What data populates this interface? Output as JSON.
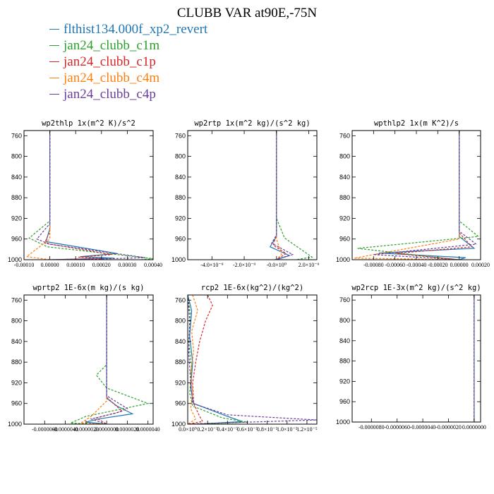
{
  "title": "CLUBB VAR at90E,-75N",
  "legend": [
    {
      "name": "flthist134.000f_xp2_revert",
      "color": "#1f77b4"
    },
    {
      "name": "jan24_clubb_c1m",
      "color": "#2ca02c"
    },
    {
      "name": "jan24_clubb_c1p",
      "color": "#d62728"
    },
    {
      "name": "jan24_clubb_c4m",
      "color": "#ff7f0e"
    },
    {
      "name": "jan24_clubb_c4p",
      "color": "#6a3d9a"
    }
  ],
  "chart_data": [
    {
      "type": "line",
      "title": "wp2thlp   1x(m^2 K)/s^2",
      "xlim": [
        -0.0001,
        0.0004
      ],
      "ylim": [
        1000,
        750
      ],
      "yticks": [
        760,
        800,
        840,
        880,
        920,
        960,
        1000
      ],
      "ytick_labels": [
        "760",
        "800",
        "840",
        "880",
        "920",
        "960",
        "1000"
      ],
      "xticks": [
        -0.0001,
        0.0,
        0.0001,
        0.0002,
        0.0003,
        0.0004
      ],
      "xtick_labels": [
        "-0.00010",
        "0.00000",
        "0.00010",
        "0.00020",
        "0.00030",
        "0.00040"
      ],
      "series": [
        {
          "name": "flthist134.000f_xp2_revert",
          "style": "solid",
          "points": [
            [
              0,
              750
            ],
            [
              0,
              940
            ],
            [
              -1.5e-05,
              965
            ],
            [
              0.00026,
              988
            ],
            [
              0.00012,
              994
            ],
            [
              0.00025,
              997
            ],
            [
              0,
              1000
            ]
          ]
        },
        {
          "name": "jan24_clubb_c1m",
          "style": "dash",
          "points": [
            [
              0,
              750
            ],
            [
              0,
              925
            ],
            [
              -8e-05,
              958
            ],
            [
              -1e-05,
              975
            ],
            [
              0.0004,
              998
            ],
            [
              0.00035,
              1000
            ]
          ]
        },
        {
          "name": "jan24_clubb_c1p",
          "style": "dash",
          "points": [
            [
              0,
              750
            ],
            [
              0,
              945
            ],
            [
              -2e-05,
              968
            ],
            [
              0.00024,
              990
            ],
            [
              0.00011,
              995
            ],
            [
              0.0002,
              998
            ],
            [
              0,
              1000
            ]
          ]
        },
        {
          "name": "jan24_clubb_c4m",
          "style": "dash",
          "points": [
            [
              0,
              750
            ],
            [
              0,
              960
            ],
            [
              -9e-05,
              994
            ],
            [
              0,
              1000
            ]
          ]
        },
        {
          "name": "jan24_clubb_c4p",
          "style": "dash",
          "points": [
            [
              0,
              750
            ],
            [
              0,
              930
            ],
            [
              -5e-05,
              960
            ],
            [
              0,
              970
            ],
            [
              0.00037,
              996
            ],
            [
              0.0001,
              1000
            ]
          ]
        }
      ]
    },
    {
      "type": "line",
      "title": "wp2rtp   1x(m^2 kg)/(s^2 kg)",
      "xlim": [
        -5.5e-09,
        2.5e-09
      ],
      "ylim": [
        1000,
        750
      ],
      "yticks": [
        760,
        800,
        840,
        880,
        920,
        960,
        1000
      ],
      "ytick_labels": [
        "760",
        "800",
        "840",
        "880",
        "920",
        "960",
        "1000"
      ],
      "xticks": [
        -4e-09,
        -2e-09,
        0,
        2e-09
      ],
      "xtick_labels": [
        "-4.0×10⁻⁹",
        "-2.0×10⁻⁹",
        "-0.0×10⁰",
        "2.0×10⁻⁹"
      ],
      "series": [
        {
          "name": "flthist134.000f_xp2_revert",
          "style": "solid",
          "points": [
            [
              0,
              750
            ],
            [
              0,
              955
            ],
            [
              -4e-10,
              975
            ],
            [
              8e-10,
              992
            ],
            [
              0,
              1000
            ]
          ]
        },
        {
          "name": "jan24_clubb_c1m",
          "style": "dash",
          "points": [
            [
              0,
              750
            ],
            [
              0,
              920
            ],
            [
              5e-10,
              958
            ],
            [
              2.2e-09,
              995
            ],
            [
              1.2e-09,
              1000
            ]
          ]
        },
        {
          "name": "jan24_clubb_c1p",
          "style": "dash",
          "points": [
            [
              0,
              750
            ],
            [
              0,
              950
            ],
            [
              -2e-10,
              972
            ],
            [
              6e-10,
              988
            ],
            [
              0,
              1000
            ]
          ]
        },
        {
          "name": "jan24_clubb_c4m",
          "style": "dash",
          "points": [
            [
              0,
              750
            ],
            [
              0,
              960
            ],
            [
              3e-10,
              990
            ],
            [
              0,
              1000
            ]
          ]
        },
        {
          "name": "jan24_clubb_c4p",
          "style": "dash",
          "points": [
            [
              0,
              750
            ],
            [
              0,
              952
            ],
            [
              -3e-10,
              968
            ],
            [
              1e-09,
              990
            ],
            [
              -1e-10,
              1000
            ]
          ]
        }
      ]
    },
    {
      "type": "line",
      "title": "wpthlp2   1x(m K^2)/s",
      "xlim": [
        -0.001,
        0.0002
      ],
      "ylim": [
        1000,
        750
      ],
      "yticks": [
        760,
        800,
        840,
        880,
        920,
        960,
        1000
      ],
      "ytick_labels": [
        "760",
        "800",
        "840",
        "880",
        "920",
        "960",
        "1000"
      ],
      "xticks": [
        -0.0008,
        -0.0006,
        -0.0004,
        -0.0002,
        0.0,
        0.0002
      ],
      "xtick_labels": [
        "-0.00080",
        "-0.00060",
        "-0.00040",
        "-0.00020",
        "0.00000",
        "0.00020"
      ],
      "series": [
        {
          "name": "flthist134.000f_xp2_revert",
          "style": "solid",
          "points": [
            [
              0,
              750
            ],
            [
              0,
              955
            ],
            [
              0.00014,
              978
            ],
            [
              -0.00075,
              987
            ],
            [
              6e-05,
              996
            ],
            [
              0,
              1000
            ]
          ]
        },
        {
          "name": "jan24_clubb_c1m",
          "style": "dash",
          "points": [
            [
              0,
              750
            ],
            [
              0,
              925
            ],
            [
              0.00018,
              955
            ],
            [
              -0.00095,
              978
            ],
            [
              -0.0001,
              998
            ],
            [
              0,
              1000
            ]
          ]
        },
        {
          "name": "jan24_clubb_c1p",
          "style": "dash",
          "points": [
            [
              0,
              750
            ],
            [
              0,
              948
            ],
            [
              0.00012,
              975
            ],
            [
              -0.0006,
              988
            ],
            [
              0,
              1000
            ]
          ]
        },
        {
          "name": "jan24_clubb_c4m",
          "style": "dash",
          "points": [
            [
              0,
              750
            ],
            [
              0,
              960
            ],
            [
              -0.00098,
              997
            ],
            [
              0,
              1000
            ]
          ]
        },
        {
          "name": "jan24_clubb_c4p",
          "style": "dash",
          "points": [
            [
              0,
              750
            ],
            [
              0,
              945
            ],
            [
              0.00016,
              970
            ],
            [
              -0.0008,
              990
            ],
            [
              0,
              1000
            ]
          ]
        }
      ]
    },
    {
      "type": "line",
      "title": "wprtp2   1E-6x(m kg)/(s kg)",
      "xlim": [
        -8e-06,
        4.5e-06
      ],
      "ylim": [
        1000,
        750
      ],
      "yticks": [
        760,
        800,
        840,
        880,
        920,
        960,
        1000
      ],
      "ytick_labels": [
        "760",
        "800",
        "840",
        "880",
        "920",
        "960",
        "1000"
      ],
      "xticks": [
        -6e-06,
        -4e-06,
        -2e-06,
        0,
        2e-06,
        4e-06
      ],
      "xtick_labels": [
        "-0.0000060",
        "-0.0000040",
        "-0.0000020",
        "0.0000000",
        "0.0000020",
        "0.0000040"
      ],
      "series": [
        {
          "name": "flthist134.000f_xp2_revert",
          "style": "solid",
          "points": [
            [
              0,
              750
            ],
            [
              0,
              950
            ],
            [
              1e-06,
              965
            ],
            [
              2.5e-06,
              980
            ],
            [
              -8e-07,
              990
            ],
            [
              -2e-06,
              996
            ],
            [
              0,
              1000
            ]
          ]
        },
        {
          "name": "jan24_clubb_c1m",
          "style": "dash",
          "points": [
            [
              0,
              750
            ],
            [
              0,
              885
            ],
            [
              -1e-06,
              905
            ],
            [
              0,
              930
            ],
            [
              4e-06,
              960
            ],
            [
              -2e-06,
              985
            ],
            [
              -3.5e-06,
              998
            ],
            [
              -1e-06,
              1000
            ]
          ]
        },
        {
          "name": "jan24_clubb_c1p",
          "style": "dash",
          "points": [
            [
              0,
              750
            ],
            [
              0,
              948
            ],
            [
              1.5e-06,
              975
            ],
            [
              -1e-06,
              988
            ],
            [
              0,
              1000
            ]
          ]
        },
        {
          "name": "jan24_clubb_c4m",
          "style": "dash",
          "points": [
            [
              0,
              750
            ],
            [
              0,
              955
            ],
            [
              -1.5e-06,
              985
            ],
            [
              -2.5e-06,
              998
            ],
            [
              0,
              1000
            ]
          ]
        },
        {
          "name": "jan24_clubb_c4p",
          "style": "dash",
          "points": [
            [
              0,
              750
            ],
            [
              0,
              945
            ],
            [
              2e-06,
              970
            ],
            [
              1e-06,
              978
            ],
            [
              -1.5e-06,
              990
            ],
            [
              0,
              1000
            ]
          ]
        }
      ]
    },
    {
      "type": "line",
      "title": "rcp2   1E-6x(kg^2)/(kg^2)",
      "xlim": [
        0,
        1.3e-05
      ],
      "ylim": [
        1000,
        750
      ],
      "yticks": [
        760,
        800,
        840,
        880,
        920,
        960,
        1000
      ],
      "ytick_labels": [
        "760",
        "800",
        "840",
        "880",
        "920",
        "960",
        "1000"
      ],
      "xticks": [
        0,
        2e-06,
        4e-06,
        6e-06,
        8e-06,
        1e-05,
        1.2e-05
      ],
      "xtick_labels": [
        "0.0×10⁰",
        "0.2×10⁻⁵",
        "0.4×10⁻⁵",
        "0.6×10⁻⁵",
        "0.8×10⁻⁵",
        "1.0×10⁻⁵",
        "1.2×10⁻⁵"
      ],
      "series": [
        {
          "name": "flthist134.000f_xp2_revert",
          "style": "solid",
          "points": [
            [
              0,
              750
            ],
            [
              4e-07,
              780
            ],
            [
              2e-07,
              830
            ],
            [
              5e-07,
              880
            ],
            [
              3e-07,
              930
            ],
            [
              6e-07,
              960
            ],
            [
              4e-06,
              985
            ],
            [
              5.5e-06,
              995
            ],
            [
              1e-06,
              1000
            ]
          ]
        },
        {
          "name": "jan24_clubb_c1m",
          "style": "dash",
          "points": [
            [
              0,
              750
            ],
            [
              3e-07,
              790
            ],
            [
              1e-07,
              840
            ],
            [
              4e-07,
              890
            ],
            [
              2e-07,
              940
            ],
            [
              5e-07,
              965
            ],
            [
              3.5e-06,
              988
            ],
            [
              6e-06,
              996
            ],
            [
              1e-06,
              1000
            ]
          ]
        },
        {
          "name": "jan24_clubb_c1p",
          "style": "dash",
          "points": [
            [
              2e-06,
              750
            ],
            [
              2.5e-06,
              770
            ],
            [
              1.8e-06,
              800
            ],
            [
              1.2e-06,
              840
            ],
            [
              8e-07,
              880
            ],
            [
              5e-07,
              920
            ],
            [
              6e-07,
              960
            ],
            [
              1.2e-06,
              985
            ],
            [
              1.5e-06,
              995
            ],
            [
              0,
              1000
            ]
          ]
        },
        {
          "name": "jan24_clubb_c4m",
          "style": "dash",
          "points": [
            [
              5e-07,
              750
            ],
            [
              1e-06,
              780
            ],
            [
              4e-07,
              820
            ],
            [
              6e-07,
              860
            ],
            [
              3e-07,
              900
            ],
            [
              5e-07,
              940
            ],
            [
              3e-07,
              970
            ],
            [
              8e-07,
              990
            ],
            [
              0,
              1000
            ]
          ]
        },
        {
          "name": "jan24_clubb_c4p",
          "style": "dash",
          "points": [
            [
              0,
              750
            ],
            [
              2e-07,
              800
            ],
            [
              1e-07,
              860
            ],
            [
              3e-07,
              920
            ],
            [
              5e-07,
              960
            ],
            [
              4e-06,
              982
            ],
            [
              1.3e-05,
              992
            ],
            [
              3e-06,
              998
            ],
            [
              0,
              1000
            ]
          ]
        }
      ]
    },
    {
      "type": "line",
      "title": "wp2rcp   1E-3x(m^2 kg)/(s^2 kg)",
      "xlim": [
        -9.5e-06,
        5e-07
      ],
      "ylim": [
        1000,
        750
      ],
      "yticks": [
        760,
        800,
        840,
        880,
        920,
        960,
        1000
      ],
      "ytick_labels": [
        "760",
        "800",
        "840",
        "880",
        "920",
        "960",
        "1000"
      ],
      "xticks": [
        -8e-06,
        -6e-06,
        -4e-06,
        -2e-06,
        0
      ],
      "xtick_labels": [
        "-0.0000080",
        "-0.0000060",
        "-0.0000040",
        "-0.0000020",
        "0.0000000"
      ],
      "series": [
        {
          "name": "flthist134.000f_xp2_revert",
          "style": "solid",
          "points": [
            [
              0,
              750
            ],
            [
              0,
              1000
            ]
          ]
        },
        {
          "name": "jan24_clubb_c1m",
          "style": "dash",
          "points": [
            [
              0,
              750
            ],
            [
              0,
              1000
            ]
          ]
        },
        {
          "name": "jan24_clubb_c1p",
          "style": "dash",
          "points": [
            [
              0,
              750
            ],
            [
              0,
              1000
            ]
          ]
        },
        {
          "name": "jan24_clubb_c4m",
          "style": "dash",
          "points": [
            [
              0,
              750
            ],
            [
              0,
              1000
            ]
          ]
        },
        {
          "name": "jan24_clubb_c4p",
          "style": "dash",
          "points": [
            [
              0,
              750
            ],
            [
              0,
              1000
            ]
          ]
        }
      ]
    }
  ]
}
